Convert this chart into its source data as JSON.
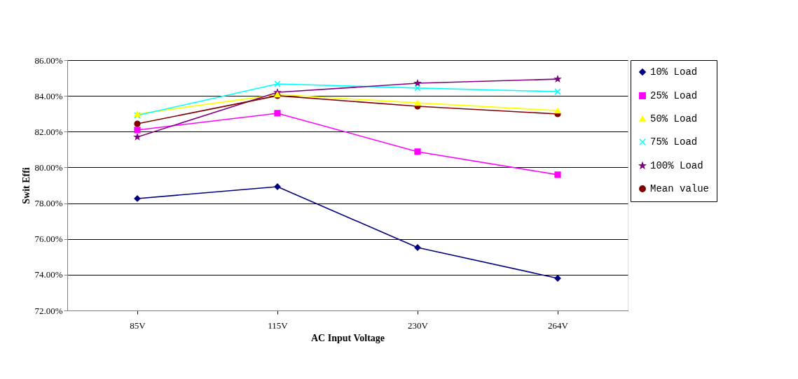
{
  "chart_data": {
    "type": "line",
    "xlabel": "AC Input Voltage",
    "ylabel": "Swit Effi",
    "categories": [
      "85V",
      "115V",
      "230V",
      "264V"
    ],
    "series": [
      {
        "name": "10% Load",
        "color": "#000080",
        "marker": "diamond",
        "values": [
          78.26,
          78.92,
          75.52,
          73.8
        ]
      },
      {
        "name": "25% Load",
        "color": "#ff00ff",
        "marker": "square",
        "values": [
          82.09,
          83.03,
          80.88,
          79.59
        ]
      },
      {
        "name": "50% Load",
        "color": "#ffff00",
        "marker": "triangle",
        "values": [
          82.99,
          84.08,
          83.61,
          83.18
        ]
      },
      {
        "name": "75% Load",
        "color": "#00ffff",
        "marker": "cross",
        "values": [
          82.91,
          84.67,
          84.44,
          84.24
        ]
      },
      {
        "name": "100% Load",
        "color": "#800080",
        "marker": "star",
        "values": [
          81.7,
          84.2,
          84.71,
          84.94
        ]
      },
      {
        "name": "Mean value",
        "color": "#800000",
        "marker": "circle",
        "values": [
          82.44,
          84.01,
          83.42,
          82.99
        ]
      }
    ],
    "ylim": [
      72,
      86
    ],
    "yticks": [
      {
        "value": 72,
        "label": "72.00%"
      },
      {
        "value": 74,
        "label": "74.00%"
      },
      {
        "value": 76,
        "label": "76.00%"
      },
      {
        "value": 78,
        "label": "78.00%"
      },
      {
        "value": 80,
        "label": "80.00%"
      },
      {
        "value": 82,
        "label": "82.00%"
      },
      {
        "value": 84,
        "label": "84.00%"
      },
      {
        "value": 86,
        "label": "86.00%"
      }
    ],
    "grid": "y",
    "legend": "right",
    "line_style": "solid"
  }
}
